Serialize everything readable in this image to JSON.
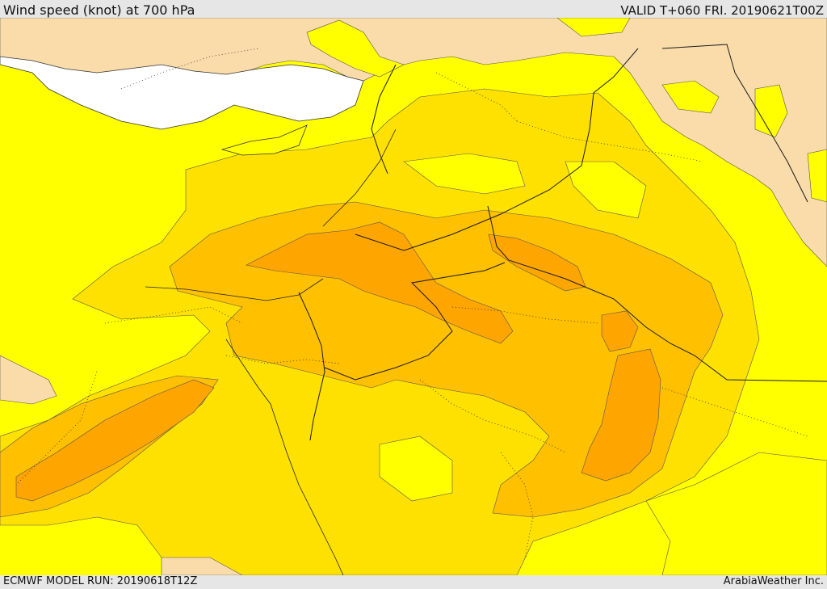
{
  "header": {
    "title": "Wind speed (knot) at 700 hPa",
    "valid": "VALID T+060 FRI. 20190621T00Z"
  },
  "footer": {
    "model_run": "ECMWF MODEL RUN: 20190618T12Z",
    "credit": "ArabiaWeather Inc."
  },
  "map": {
    "colors": {
      "land_light": "#fadcaa",
      "sea": "#ffffff",
      "band_1": "#ffff00",
      "band_2": "#ffe100",
      "band_3": "#ffc000",
      "band_4": "#ffa500",
      "border": "#1a1a1a"
    }
  }
}
